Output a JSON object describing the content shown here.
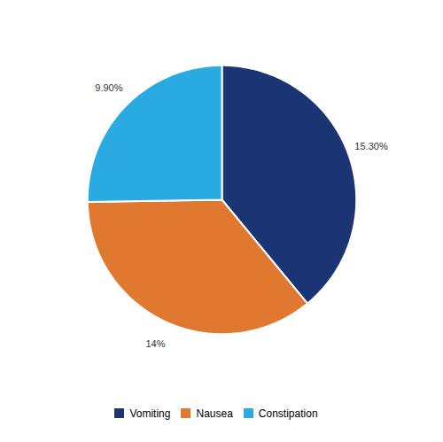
{
  "chart_data": {
    "type": "pie",
    "categories": [
      "Vomiting",
      "Nausea",
      "Constipation"
    ],
    "values": [
      15.3,
      14,
      9.9
    ],
    "value_labels": [
      "15.30%",
      "14%",
      "9.90%"
    ],
    "colors": [
      "#1b3474",
      "#e07830",
      "#29aae1"
    ],
    "data_labels": true,
    "legend": "bottom"
  }
}
